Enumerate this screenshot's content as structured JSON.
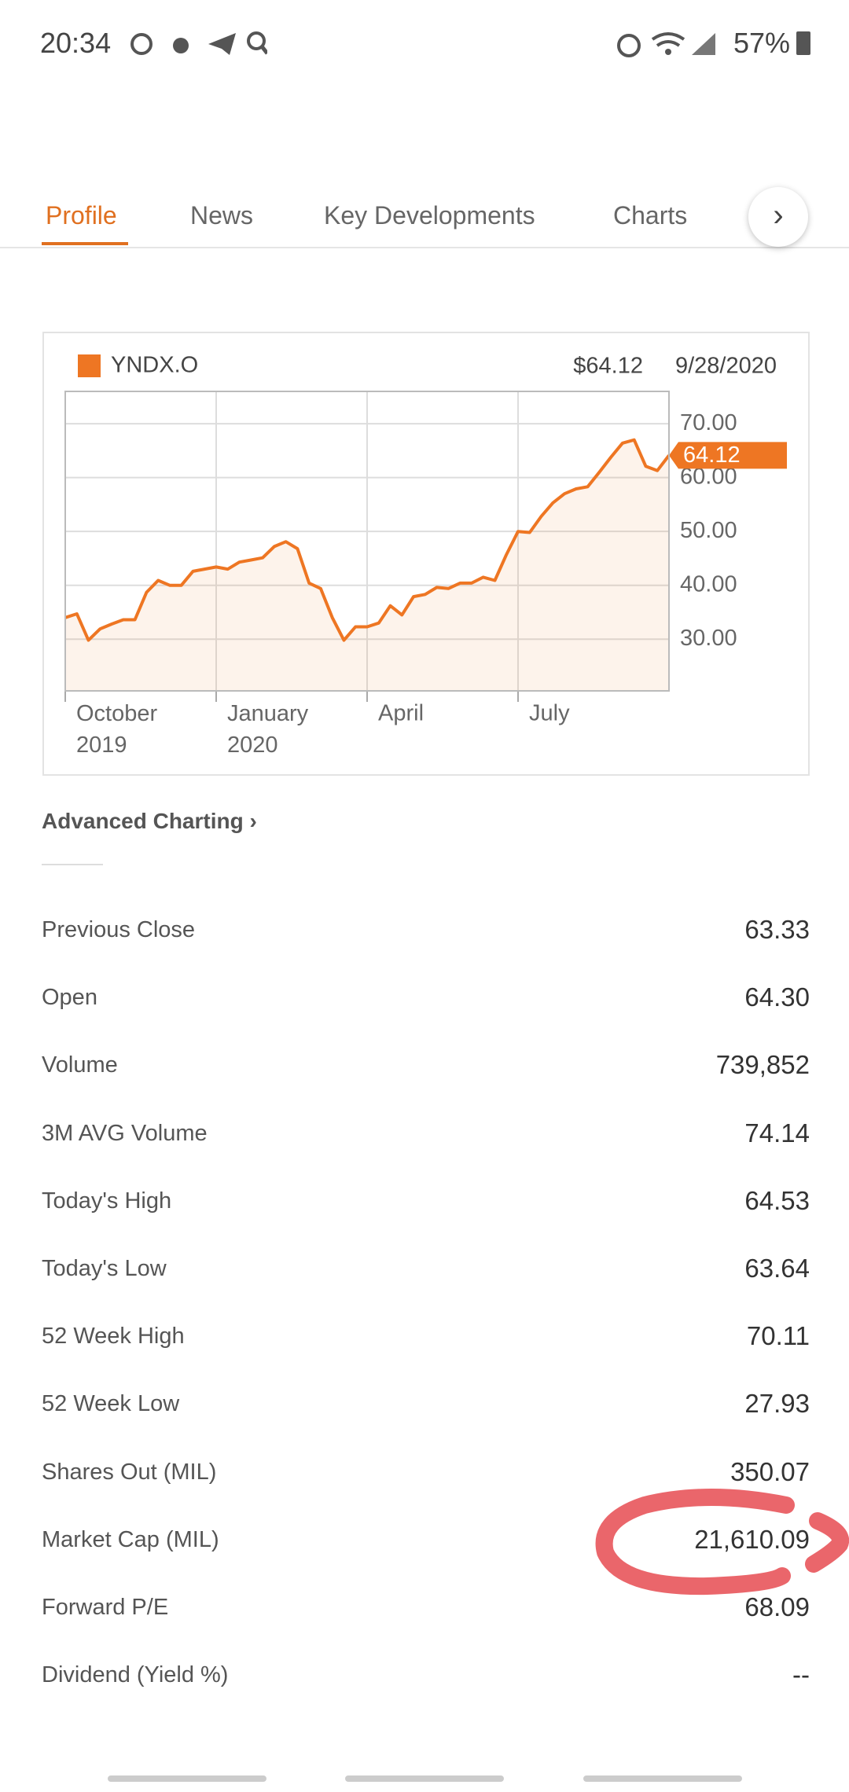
{
  "status_bar": {
    "time": "20:34",
    "battery": "57%"
  },
  "tabs": [
    "Profile",
    "News",
    "Key Developments",
    "Charts"
  ],
  "chart_data": {
    "type": "line",
    "ticker": "YNDX.O",
    "price": "$64.12",
    "date": "9/28/2020",
    "categories": [
      "October 2019",
      null,
      null,
      null,
      null,
      null,
      null,
      null,
      null,
      null,
      null,
      null,
      null,
      "January 2020",
      null,
      null,
      null,
      null,
      null,
      null,
      null,
      null,
      null,
      null,
      null,
      null,
      "April",
      null,
      null,
      null,
      null,
      null,
      null,
      null,
      null,
      null,
      null,
      null,
      null,
      "July",
      null,
      null,
      null,
      null,
      null,
      null,
      null,
      null,
      null,
      null,
      null,
      null,
      null
    ],
    "series": [
      {
        "name": "YNDX.O",
        "color": "#ee7623",
        "values": [
          34,
          34.7,
          29.8,
          31.9,
          32.8,
          33.6,
          33.6,
          38.7,
          40.9,
          40,
          40,
          42.6,
          43,
          43.4,
          43,
          44.3,
          44.7,
          45.1,
          47.2,
          48.1,
          46.8,
          40.4,
          39.4,
          34,
          29.8,
          32.3,
          32.3,
          33,
          36.2,
          34.5,
          37.9,
          38.3,
          39.6,
          39.4,
          40.4,
          40.4,
          41.5,
          40.9,
          45.7,
          50,
          49.8,
          52.8,
          55.3,
          57,
          57.9,
          58.3,
          61,
          63.8,
          66.4,
          67,
          62.1,
          61.3,
          64.12
        ]
      }
    ],
    "ylim": [
      20.4,
      76
    ],
    "yticks": [
      {
        "value": 30,
        "label": "30.00"
      },
      {
        "value": 40,
        "label": "40.00"
      },
      {
        "value": 50,
        "label": "50.00"
      },
      {
        "value": 60,
        "label": "60.00"
      },
      {
        "value": 70,
        "label": "70.00"
      }
    ],
    "grid": true
  },
  "advanced_charting": "Advanced Charting",
  "stats": [
    {
      "label": "Previous Close",
      "value": "63.33"
    },
    {
      "label": "Open",
      "value": "64.30"
    },
    {
      "label": "Volume",
      "value": "739,852"
    },
    {
      "label": "3M AVG Volume",
      "value": "74.14"
    },
    {
      "label": "Today's High",
      "value": "64.53"
    },
    {
      "label": "Today's Low",
      "value": "63.64"
    },
    {
      "label": "52 Week High",
      "value": "70.11"
    },
    {
      "label": "52 Week Low",
      "value": "27.93"
    },
    {
      "label": "Shares Out (MIL)",
      "value": "350.07"
    },
    {
      "label": "Market Cap (MIL)",
      "value": "21,610.09"
    },
    {
      "label": "Forward P/E",
      "value": "68.09"
    },
    {
      "label": "Dividend (Yield %)",
      "value": "--"
    }
  ]
}
